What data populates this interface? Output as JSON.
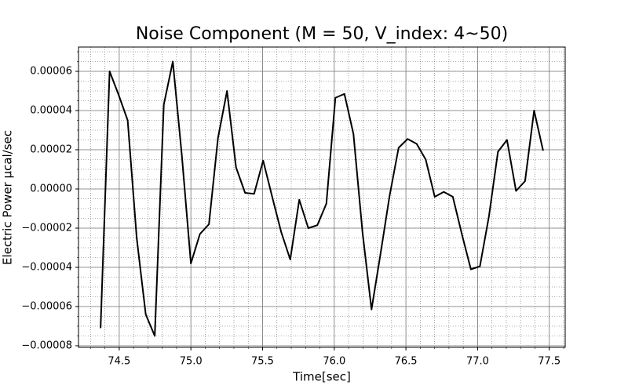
{
  "chart_data": {
    "type": "line",
    "title": "Noise Component (M = 50, V_index: 4~50)",
    "xlabel": "Time[sec]",
    "ylabel": "Electric Power µcal/sec",
    "x": [
      74.37,
      74.433,
      74.496,
      74.559,
      74.622,
      74.685,
      74.748,
      74.811,
      74.874,
      74.937,
      75.0,
      75.063,
      75.126,
      75.189,
      75.252,
      75.315,
      75.378,
      75.441,
      75.504,
      75.567,
      75.63,
      75.693,
      75.756,
      75.819,
      75.882,
      75.945,
      76.008,
      76.071,
      76.134,
      76.197,
      76.26,
      76.323,
      76.386,
      76.449,
      76.512,
      76.575,
      76.638,
      76.701,
      76.764,
      76.827,
      76.89,
      76.953,
      77.016,
      77.079,
      77.142,
      77.205,
      77.268,
      77.331,
      77.394,
      77.457
    ],
    "series": [
      {
        "color": "#000000",
        "values": [
          -7.1e-05,
          6e-05,
          4.8e-05,
          3.5e-05,
          -2.5e-05,
          -6.4e-05,
          -7.5e-05,
          4.3e-05,
          6.5e-05,
          1.7e-05,
          -3.8e-05,
          -2.3e-05,
          -1.8e-05,
          2.6e-05,
          5e-05,
          1.1e-05,
          -2e-06,
          -2.5e-06,
          1.45e-05,
          -4e-06,
          -2.2e-05,
          -3.6e-05,
          -5.5e-06,
          -2e-05,
          -1.85e-05,
          -7.5e-06,
          4.65e-05,
          4.85e-05,
          2.8e-05,
          -2.2e-05,
          -6.15e-05,
          -3.3e-05,
          -3.5e-06,
          2.1e-05,
          2.55e-05,
          2.3e-05,
          1.5e-05,
          -4e-06,
          -1.5e-06,
          -4e-06,
          -2.3e-05,
          -4.1e-05,
          -3.95e-05,
          -1.4e-05,
          1.9e-05,
          2.5e-05,
          -1e-06,
          4e-06,
          4e-05,
          1.95e-05
        ]
      }
    ],
    "xlim": [
      74.216,
      77.611
    ],
    "ylim": [
      -8.08e-05,
      7.24e-05
    ],
    "xticks": [
      74.5,
      {
        "value": 75.0,
        "label": "75.0"
      },
      75.5,
      {
        "value": 76.0,
        "label": "76.0"
      },
      76.5,
      {
        "value": 77.0,
        "label": "77.0"
      },
      77.5
    ],
    "yticks": [
      {
        "value": -8e-05,
        "label": "−0.00008"
      },
      {
        "value": -6e-05,
        "label": "−0.00006"
      },
      {
        "value": -4e-05,
        "label": "−0.00004"
      },
      {
        "value": -2e-05,
        "label": "−0.00002"
      },
      {
        "value": 0,
        "label": "0.00000"
      },
      {
        "value": 2e-05,
        "label": "0.00002"
      },
      {
        "value": 4e-05,
        "label": "0.00004"
      },
      {
        "value": 6e-05,
        "label": "0.00006"
      }
    ],
    "grid": true,
    "minor_grid": true
  }
}
